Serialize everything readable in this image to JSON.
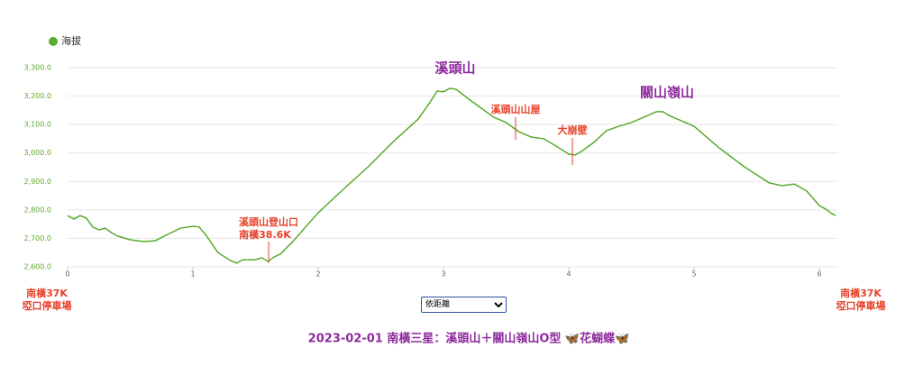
{
  "chart_data": {
    "type": "line",
    "legend": "top-left",
    "grid": true,
    "series": [
      {
        "name": "海拔",
        "color": "#5aab2e",
        "x": [
          0,
          0.05,
          0.1,
          0.15,
          0.2,
          0.25,
          0.3,
          0.35,
          0.4,
          0.5,
          0.6,
          0.65,
          0.7,
          0.8,
          0.9,
          1.0,
          1.05,
          1.1,
          1.2,
          1.3,
          1.35,
          1.4,
          1.5,
          1.55,
          1.6,
          1.65,
          1.7,
          1.8,
          1.9,
          2.0,
          2.2,
          2.4,
          2.6,
          2.8,
          2.9,
          2.95,
          3.0,
          3.05,
          3.1,
          3.2,
          3.3,
          3.4,
          3.5,
          3.6,
          3.7,
          3.8,
          3.9,
          4.0,
          4.05,
          4.1,
          4.2,
          4.3,
          4.4,
          4.5,
          4.6,
          4.7,
          4.75,
          4.8,
          4.9,
          5.0,
          5.2,
          5.4,
          5.6,
          5.7,
          5.8,
          5.9,
          6.0,
          6.05,
          6.1,
          6.13
        ],
        "values": [
          2780,
          2768,
          2780,
          2771,
          2740,
          2730,
          2736,
          2720,
          2708,
          2695,
          2689,
          2690,
          2692,
          2714,
          2736,
          2742,
          2740,
          2714,
          2650,
          2622,
          2613,
          2625,
          2625,
          2632,
          2619,
          2635,
          2645,
          2690,
          2740,
          2790,
          2872,
          2952,
          3040,
          3120,
          3183,
          3218,
          3215,
          3227,
          3224,
          3190,
          3158,
          3126,
          3107,
          3075,
          3056,
          3050,
          3024,
          2996,
          2993,
          3005,
          3037,
          3078,
          3094,
          3107,
          3126,
          3145,
          3145,
          3132,
          3113,
          3094,
          3018,
          2952,
          2895,
          2885,
          2891,
          2866,
          2815,
          2803,
          2787,
          2780
        ]
      }
    ],
    "xlim": [
      0,
      6.15
    ],
    "xticks": [
      0,
      1,
      2,
      3,
      4,
      5,
      6
    ],
    "ylim": [
      2600,
      3300
    ],
    "yticks": [
      {
        "value": 2600,
        "label": "2,600.0"
      },
      {
        "value": 2700,
        "label": "2,700.0"
      },
      {
        "value": 2800,
        "label": "2,800.0"
      },
      {
        "value": 2900,
        "label": "2,900.0"
      },
      {
        "value": 3000,
        "label": "3,000.0"
      },
      {
        "value": 3100,
        "label": "3,100.0"
      },
      {
        "value": 3200,
        "label": "3,200.0"
      },
      {
        "value": 3300,
        "label": "3,300.0"
      }
    ],
    "annotations": [
      "溪頭山",
      "溪頭山山屋",
      "大崩壁",
      "關山嶺山",
      "溪頭山登山口",
      "南橫38.6K"
    ],
    "endpoint_labels": [
      "南橫37K",
      "埡口停車場",
      "南橫37K",
      "埡口停車場"
    ],
    "sort_option": "依距離",
    "caption": "2023-02-01 南橫三星：溪頭山＋關山嶺山O型 🦋花蝴蝶🦋"
  }
}
